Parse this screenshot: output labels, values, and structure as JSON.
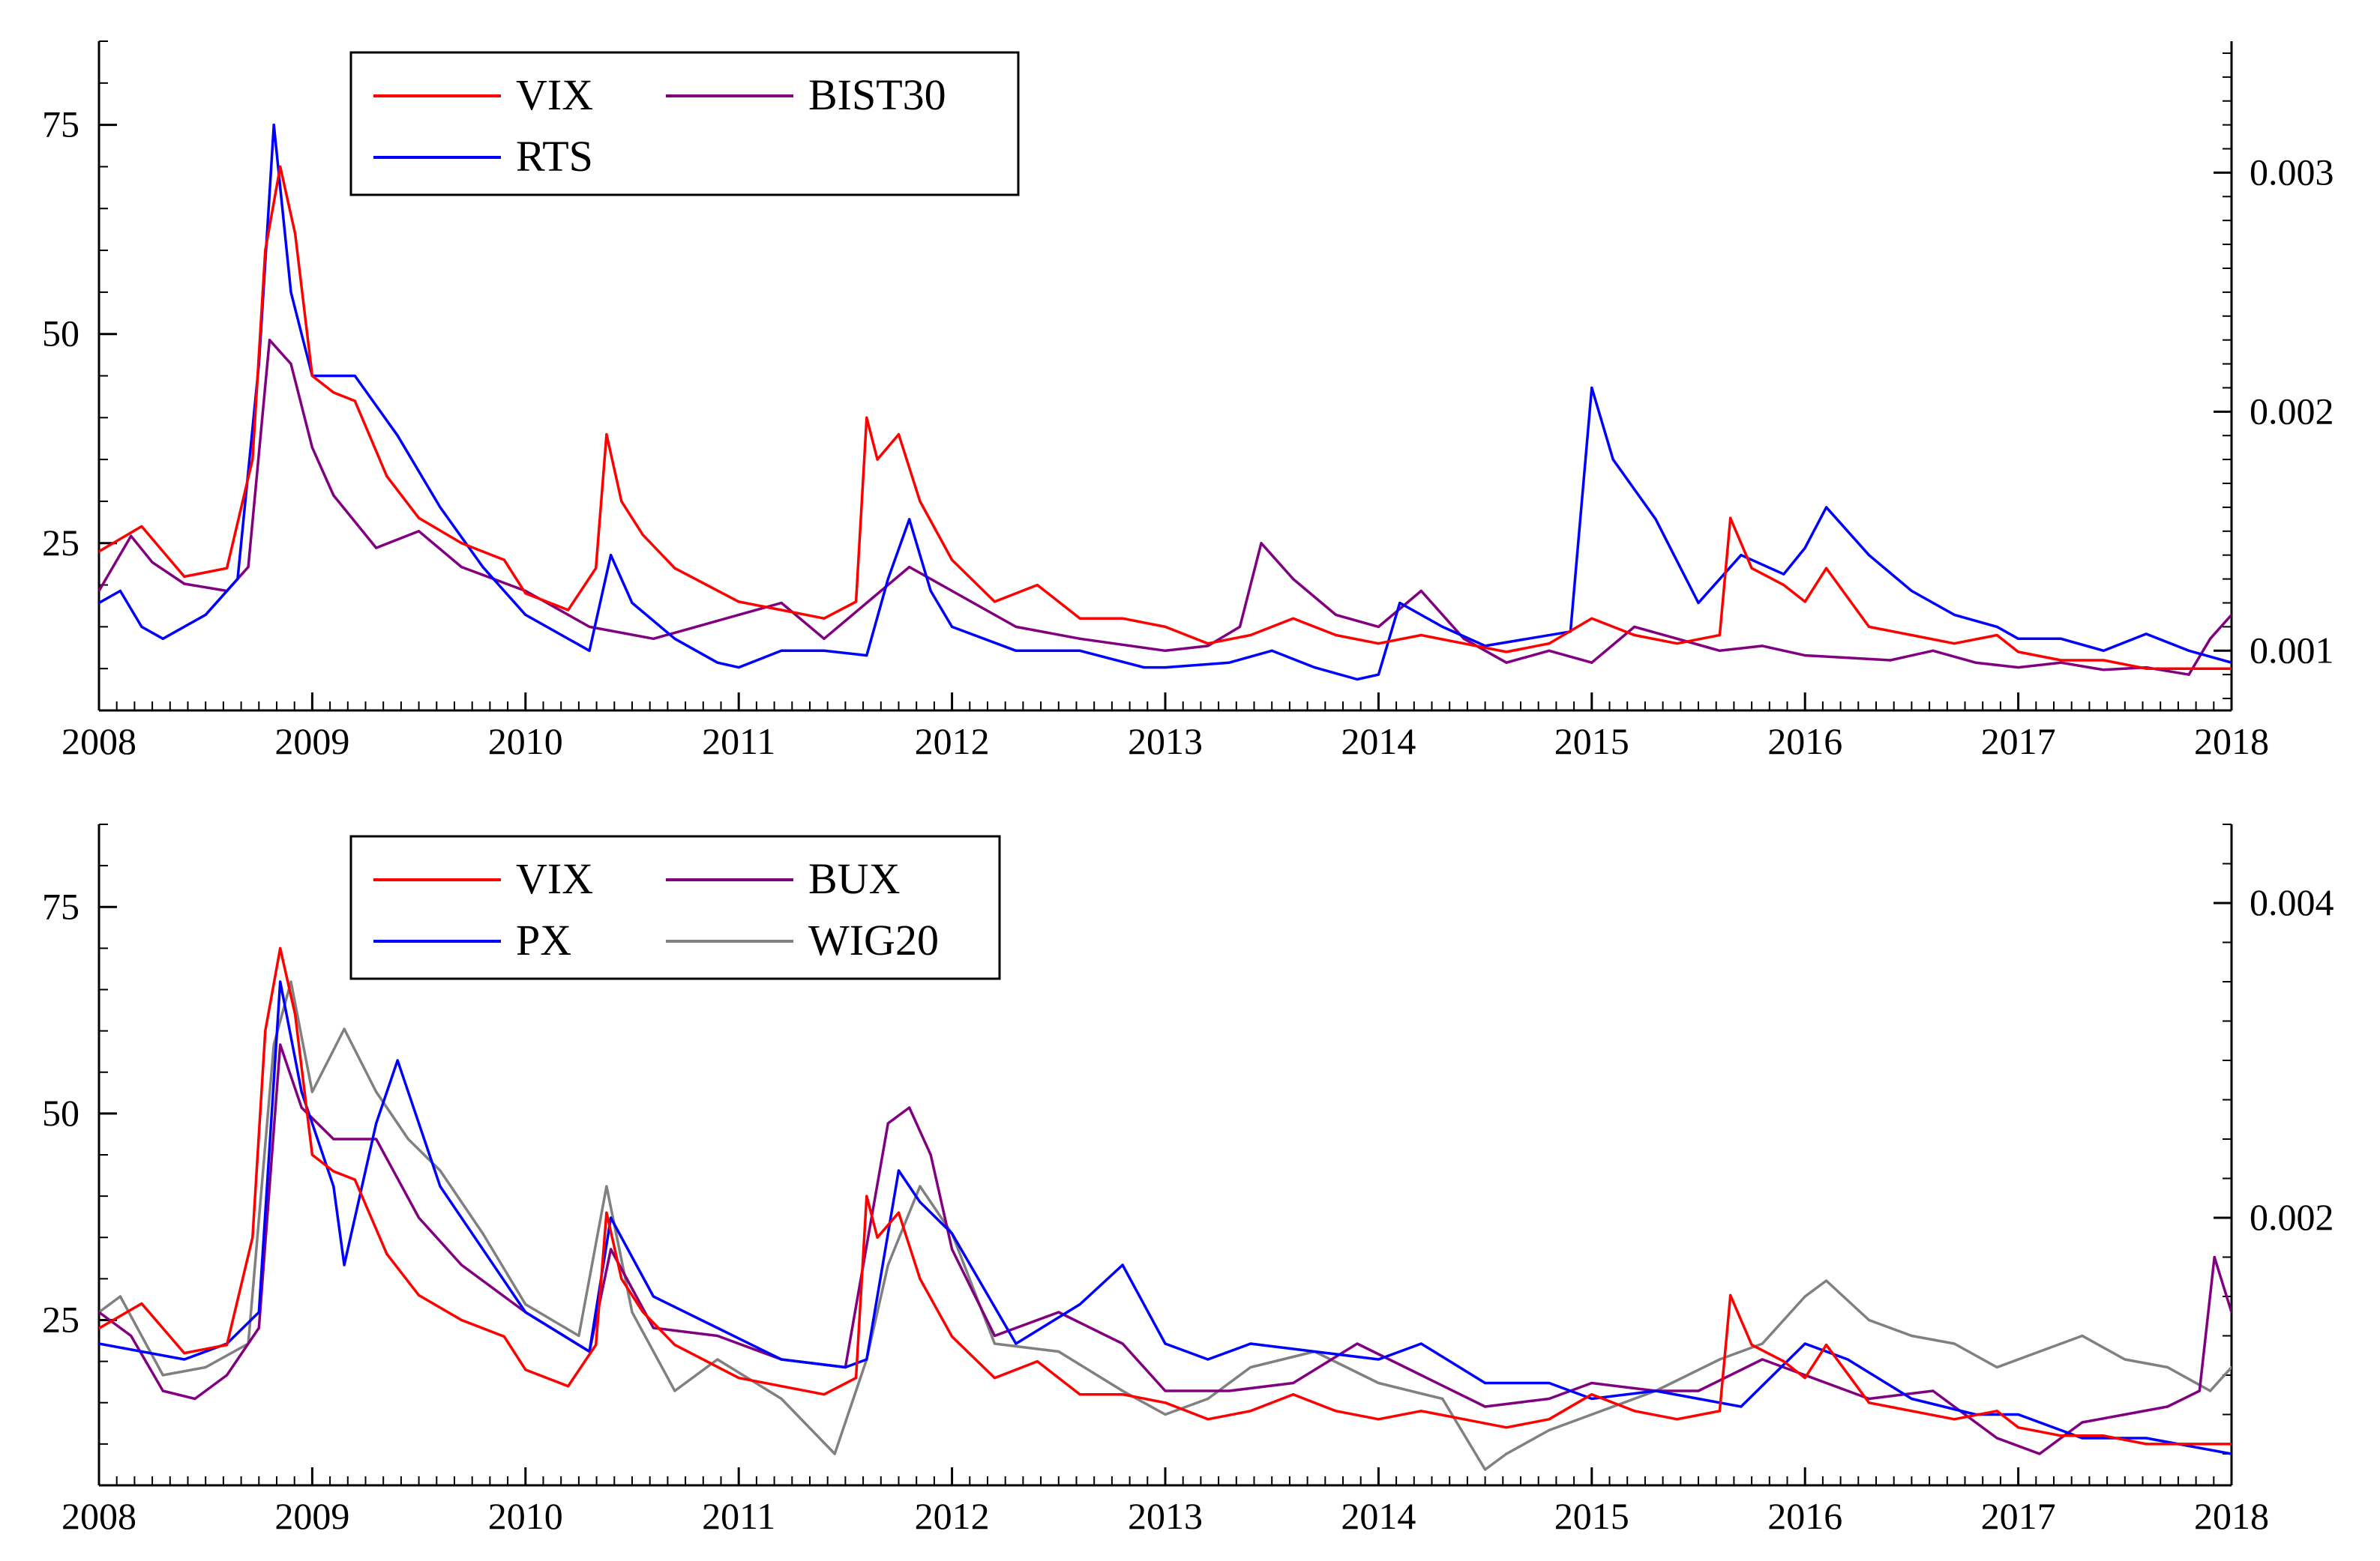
{
  "chart_data": [
    {
      "type": "line",
      "panel": "top",
      "title": "",
      "xlabel": "",
      "ylabel": "",
      "x_ticks": [
        "2008",
        "2009",
        "2010",
        "2011",
        "2012",
        "2013",
        "2014",
        "2015",
        "2016",
        "2017",
        "2018"
      ],
      "xlim": [
        2008,
        2018
      ],
      "ylim_left": [
        5,
        85
      ],
      "y_ticks_left": [
        "25",
        "50",
        "75"
      ],
      "ylim_right": [
        0.00075,
        0.00355
      ],
      "y_ticks_right": [
        "0.001",
        "0.002",
        "0.003"
      ],
      "legend": {
        "placement": "top-left",
        "entries": [
          "VIX",
          "BIST30",
          "RTS"
        ]
      },
      "series": [
        {
          "name": "VIX",
          "axis": "left",
          "color": "#ff0000",
          "x": [
            2008.0,
            2008.2,
            2008.4,
            2008.6,
            2008.72,
            2008.78,
            2008.85,
            2008.92,
            2009.0,
            2009.1,
            2009.2,
            2009.35,
            2009.5,
            2009.7,
            2009.9,
            2010.0,
            2010.2,
            2010.33,
            2010.38,
            2010.45,
            2010.55,
            2010.7,
            2010.85,
            2011.0,
            2011.2,
            2011.4,
            2011.55,
            2011.6,
            2011.65,
            2011.75,
            2011.85,
            2012.0,
            2012.2,
            2012.4,
            2012.6,
            2012.8,
            2013.0,
            2013.2,
            2013.4,
            2013.6,
            2013.8,
            2014.0,
            2014.2,
            2014.4,
            2014.6,
            2014.8,
            2015.0,
            2015.2,
            2015.4,
            2015.6,
            2015.65,
            2015.75,
            2015.9,
            2016.0,
            2016.1,
            2016.3,
            2016.5,
            2016.7,
            2016.9,
            2017.0,
            2017.2,
            2017.4,
            2017.6,
            2017.8,
            2018.0
          ],
          "y": [
            24,
            27,
            21,
            22,
            35,
            60,
            70,
            62,
            45,
            43,
            42,
            33,
            28,
            25,
            23,
            19,
            17,
            22,
            38,
            30,
            26,
            22,
            20,
            18,
            17,
            16,
            18,
            40,
            35,
            38,
            30,
            23,
            18,
            20,
            16,
            16,
            15,
            13,
            14,
            16,
            14,
            13,
            14,
            13,
            12,
            13,
            16,
            14,
            13,
            14,
            28,
            22,
            20,
            18,
            22,
            15,
            14,
            13,
            14,
            12,
            11,
            11,
            10,
            10,
            10
          ]
        },
        {
          "name": "BIST30",
          "axis": "right",
          "color": "#800080",
          "x": [
            2008.0,
            2008.15,
            2008.25,
            2008.4,
            2008.6,
            2008.7,
            2008.8,
            2008.9,
            2009.0,
            2009.1,
            2009.3,
            2009.5,
            2009.7,
            2010.0,
            2010.3,
            2010.6,
            2010.8,
            2011.0,
            2011.2,
            2011.4,
            2011.6,
            2011.8,
            2012.0,
            2012.3,
            2012.6,
            2013.0,
            2013.2,
            2013.35,
            2013.45,
            2013.6,
            2013.8,
            2014.0,
            2014.2,
            2014.4,
            2014.6,
            2014.8,
            2015.0,
            2015.2,
            2015.4,
            2015.6,
            2015.8,
            2016.0,
            2016.2,
            2016.4,
            2016.6,
            2016.8,
            2017.0,
            2017.2,
            2017.4,
            2017.6,
            2017.8,
            2017.9,
            2018.0
          ],
          "y": [
            0.00125,
            0.00148,
            0.00137,
            0.00128,
            0.00125,
            0.00135,
            0.0023,
            0.0022,
            0.00185,
            0.00165,
            0.00143,
            0.0015,
            0.00135,
            0.00125,
            0.0011,
            0.00105,
            0.0011,
            0.00115,
            0.0012,
            0.00105,
            0.0012,
            0.00135,
            0.00125,
            0.0011,
            0.00105,
            0.001,
            0.00102,
            0.0011,
            0.00145,
            0.0013,
            0.00115,
            0.0011,
            0.00125,
            0.00105,
            0.00095,
            0.001,
            0.00095,
            0.0011,
            0.00105,
            0.001,
            0.00102,
            0.00098,
            0.00097,
            0.00096,
            0.001,
            0.00095,
            0.00093,
            0.00095,
            0.00092,
            0.00093,
            0.0009,
            0.00105,
            0.00115
          ]
        },
        {
          "name": "RTS",
          "axis": "right",
          "color": "#0000ff",
          "x": [
            2008.0,
            2008.1,
            2008.2,
            2008.3,
            2008.5,
            2008.65,
            2008.75,
            2008.82,
            2008.9,
            2009.0,
            2009.2,
            2009.4,
            2009.6,
            2009.8,
            2010.0,
            2010.3,
            2010.4,
            2010.5,
            2010.7,
            2010.9,
            2011.0,
            2011.2,
            2011.4,
            2011.6,
            2011.7,
            2011.8,
            2011.9,
            2012.0,
            2012.3,
            2012.6,
            2012.9,
            2013.0,
            2013.3,
            2013.5,
            2013.7,
            2013.9,
            2014.0,
            2014.1,
            2014.3,
            2014.5,
            2014.7,
            2014.9,
            2015.0,
            2015.1,
            2015.3,
            2015.5,
            2015.7,
            2015.9,
            2016.0,
            2016.1,
            2016.3,
            2016.5,
            2016.7,
            2016.9,
            2017.0,
            2017.2,
            2017.4,
            2017.6,
            2017.8,
            2018.0
          ],
          "y": [
            0.0012,
            0.00125,
            0.0011,
            0.00105,
            0.00115,
            0.0013,
            0.0022,
            0.0032,
            0.0025,
            0.00215,
            0.00215,
            0.0019,
            0.0016,
            0.00135,
            0.00115,
            0.001,
            0.0014,
            0.0012,
            0.00105,
            0.00095,
            0.00093,
            0.001,
            0.001,
            0.00098,
            0.0013,
            0.00155,
            0.00125,
            0.0011,
            0.001,
            0.001,
            0.00093,
            0.00093,
            0.00095,
            0.001,
            0.00093,
            0.00088,
            0.0009,
            0.0012,
            0.0011,
            0.00102,
            0.00105,
            0.00108,
            0.0021,
            0.0018,
            0.00155,
            0.0012,
            0.0014,
            0.00132,
            0.00143,
            0.0016,
            0.0014,
            0.00125,
            0.00115,
            0.0011,
            0.00105,
            0.00105,
            0.001,
            0.00107,
            0.001,
            0.00095
          ]
        }
      ]
    },
    {
      "type": "line",
      "panel": "bottom",
      "title": "",
      "xlabel": "",
      "ylabel": "",
      "x_ticks": [
        "2008",
        "2009",
        "2010",
        "2011",
        "2012",
        "2013",
        "2014",
        "2015",
        "2016",
        "2017",
        "2018"
      ],
      "xlim": [
        2008,
        2018
      ],
      "ylim_left": [
        5,
        85
      ],
      "y_ticks_left": [
        "25",
        "50",
        "75"
      ],
      "ylim_right": [
        0.0003,
        0.0045
      ],
      "y_ticks_right": [
        "0.002",
        "0.004"
      ],
      "legend": {
        "placement": "top-left",
        "entries": [
          "VIX",
          "BUX",
          "PX",
          "WIG20"
        ]
      },
      "series": [
        {
          "name": "VIX",
          "axis": "left",
          "color": "#ff0000",
          "x": [
            2008.0,
            2008.2,
            2008.4,
            2008.6,
            2008.72,
            2008.78,
            2008.85,
            2008.92,
            2009.0,
            2009.1,
            2009.2,
            2009.35,
            2009.5,
            2009.7,
            2009.9,
            2010.0,
            2010.2,
            2010.33,
            2010.38,
            2010.45,
            2010.55,
            2010.7,
            2010.85,
            2011.0,
            2011.2,
            2011.4,
            2011.55,
            2011.6,
            2011.65,
            2011.75,
            2011.85,
            2012.0,
            2012.2,
            2012.4,
            2012.6,
            2012.8,
            2013.0,
            2013.2,
            2013.4,
            2013.6,
            2013.8,
            2014.0,
            2014.2,
            2014.4,
            2014.6,
            2014.8,
            2015.0,
            2015.2,
            2015.4,
            2015.6,
            2015.65,
            2015.75,
            2015.9,
            2016.0,
            2016.1,
            2016.3,
            2016.5,
            2016.7,
            2016.9,
            2017.0,
            2017.2,
            2017.4,
            2017.6,
            2017.8,
            2018.0
          ],
          "y": [
            24,
            27,
            21,
            22,
            35,
            60,
            70,
            62,
            45,
            43,
            42,
            33,
            28,
            25,
            23,
            19,
            17,
            22,
            38,
            30,
            26,
            22,
            20,
            18,
            17,
            16,
            18,
            40,
            35,
            38,
            30,
            23,
            18,
            20,
            16,
            16,
            15,
            13,
            14,
            16,
            14,
            13,
            14,
            13,
            12,
            13,
            16,
            14,
            13,
            14,
            28,
            22,
            20,
            18,
            22,
            15,
            14,
            13,
            14,
            12,
            11,
            11,
            10,
            10,
            10
          ]
        },
        {
          "name": "BUX",
          "axis": "right",
          "color": "#800080",
          "x": [
            2008.0,
            2008.15,
            2008.3,
            2008.45,
            2008.6,
            2008.75,
            2008.85,
            2008.95,
            2009.1,
            2009.3,
            2009.5,
            2009.7,
            2010.0,
            2010.3,
            2010.4,
            2010.6,
            2010.9,
            2011.2,
            2011.5,
            2011.7,
            2011.8,
            2011.9,
            2012.0,
            2012.2,
            2012.5,
            2012.8,
            2013.0,
            2013.3,
            2013.6,
            2013.9,
            2014.2,
            2014.5,
            2014.8,
            2015.0,
            2015.3,
            2015.5,
            2015.8,
            2016.0,
            2016.3,
            2016.6,
            2016.9,
            2017.1,
            2017.3,
            2017.5,
            2017.7,
            2017.85,
            2017.92,
            2018.0
          ],
          "y": [
            0.0014,
            0.00125,
            0.0009,
            0.00085,
            0.001,
            0.0013,
            0.0031,
            0.0027,
            0.0025,
            0.0025,
            0.002,
            0.0017,
            0.0014,
            0.00115,
            0.0018,
            0.0013,
            0.00125,
            0.0011,
            0.00105,
            0.0026,
            0.0027,
            0.0024,
            0.0018,
            0.00125,
            0.0014,
            0.0012,
            0.0009,
            0.0009,
            0.00095,
            0.0012,
            0.001,
            0.0008,
            0.00085,
            0.00095,
            0.0009,
            0.0009,
            0.0011,
            0.001,
            0.00085,
            0.0009,
            0.0006,
            0.0005,
            0.0007,
            0.00075,
            0.0008,
            0.0009,
            0.00175,
            0.0014
          ]
        },
        {
          "name": "PX",
          "axis": "right",
          "color": "#0000ff",
          "x": [
            2008.0,
            2008.2,
            2008.4,
            2008.6,
            2008.75,
            2008.85,
            2008.95,
            2009.1,
            2009.15,
            2009.3,
            2009.4,
            2009.6,
            2009.8,
            2010.0,
            2010.3,
            2010.4,
            2010.6,
            2010.9,
            2011.2,
            2011.5,
            2011.6,
            2011.75,
            2011.85,
            2012.0,
            2012.3,
            2012.6,
            2012.8,
            2013.0,
            2013.2,
            2013.4,
            2013.7,
            2014.0,
            2014.2,
            2014.5,
            2014.8,
            2015.0,
            2015.3,
            2015.5,
            2015.7,
            2016.0,
            2016.2,
            2016.5,
            2016.8,
            2017.0,
            2017.3,
            2017.6,
            2017.8,
            2018.0
          ],
          "y": [
            0.0012,
            0.00115,
            0.0011,
            0.0012,
            0.0014,
            0.0035,
            0.0028,
            0.0022,
            0.0017,
            0.0026,
            0.003,
            0.0022,
            0.0018,
            0.0014,
            0.00115,
            0.002,
            0.0015,
            0.0013,
            0.0011,
            0.00105,
            0.0011,
            0.0023,
            0.0021,
            0.0019,
            0.0012,
            0.00145,
            0.0017,
            0.0012,
            0.0011,
            0.0012,
            0.00115,
            0.0011,
            0.0012,
            0.00095,
            0.00095,
            0.00085,
            0.0009,
            0.00085,
            0.0008,
            0.0012,
            0.0011,
            0.00085,
            0.00075,
            0.00075,
            0.0006,
            0.0006,
            0.00055,
            0.0005
          ]
        },
        {
          "name": "WIG20",
          "axis": "right",
          "color": "#808080",
          "x": [
            2008.0,
            2008.1,
            2008.3,
            2008.5,
            2008.7,
            2008.82,
            2008.9,
            2009.0,
            2009.15,
            2009.3,
            2009.45,
            2009.6,
            2009.8,
            2010.0,
            2010.25,
            2010.38,
            2010.5,
            2010.7,
            2010.9,
            2011.2,
            2011.45,
            2011.6,
            2011.7,
            2011.85,
            2012.0,
            2012.2,
            2012.5,
            2012.8,
            2013.0,
            2013.2,
            2013.4,
            2013.7,
            2014.0,
            2014.3,
            2014.5,
            2014.6,
            2014.8,
            2015.0,
            2015.3,
            2015.6,
            2015.8,
            2016.0,
            2016.1,
            2016.3,
            2016.5,
            2016.7,
            2016.9,
            2017.1,
            2017.3,
            2017.5,
            2017.7,
            2017.9,
            2018.0
          ],
          "y": [
            0.0014,
            0.0015,
            0.001,
            0.00105,
            0.0012,
            0.0031,
            0.0035,
            0.0028,
            0.0032,
            0.0028,
            0.0025,
            0.0023,
            0.0019,
            0.00145,
            0.00125,
            0.0022,
            0.0014,
            0.0009,
            0.0011,
            0.00085,
            0.0005,
            0.0011,
            0.0017,
            0.0022,
            0.0019,
            0.0012,
            0.00115,
            0.0009,
            0.00075,
            0.00085,
            0.00105,
            0.00115,
            0.00095,
            0.00085,
            0.0004,
            0.0005,
            0.00065,
            0.00075,
            0.0009,
            0.0011,
            0.0012,
            0.0015,
            0.0016,
            0.00135,
            0.00125,
            0.0012,
            0.00105,
            0.00115,
            0.00125,
            0.0011,
            0.00105,
            0.0009,
            0.00105
          ]
        }
      ]
    }
  ]
}
